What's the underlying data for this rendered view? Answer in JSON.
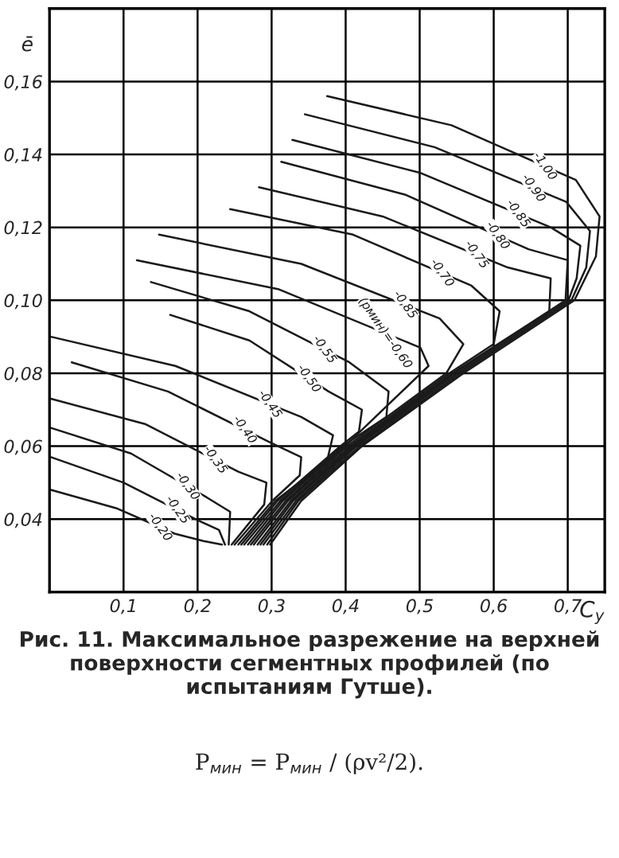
{
  "chart_data": {
    "type": "line",
    "xlabel": "C$_{y}$",
    "ylabel": "ē",
    "xlim": [
      0,
      0.75
    ],
    "ylim": [
      0.02,
      0.18
    ],
    "xticks": [
      {
        "value": 0.1,
        "label": "0,1"
      },
      {
        "value": 0.2,
        "label": "0,2"
      },
      {
        "value": 0.3,
        "label": "0,3"
      },
      {
        "value": 0.4,
        "label": "0,4"
      },
      {
        "value": 0.5,
        "label": "0,5"
      },
      {
        "value": 0.6,
        "label": "0,6"
      },
      {
        "value": 0.7,
        "label": "0,7"
      }
    ],
    "yticks": [
      {
        "value": 0.04,
        "label": "0,04"
      },
      {
        "value": 0.06,
        "label": "0,06"
      },
      {
        "value": 0.08,
        "label": "0,08"
      },
      {
        "value": 0.1,
        "label": "0,10"
      },
      {
        "value": 0.12,
        "label": "0,12"
      },
      {
        "value": 0.14,
        "label": "0,14"
      },
      {
        "value": 0.16,
        "label": "0,16"
      }
    ],
    "grid": true,
    "legend": false,
    "marker": "none",
    "line_style": "solid",
    "series": [
      {
        "name": "-1,00",
        "color": "#1a1a1a",
        "x": [
          0.375,
          0.543,
          0.711,
          0.743,
          0.738,
          0.709,
          0.559,
          0.422,
          0.34,
          0.298
        ],
        "values": [
          0.156,
          0.148,
          0.133,
          0.123,
          0.112,
          0.1,
          0.08,
          0.06,
          0.045,
          0.033
        ]
      },
      {
        "name": "-0,90",
        "color": "#1a1a1a",
        "x": [
          0.345,
          0.52,
          0.698,
          0.73,
          0.725,
          0.705,
          0.555,
          0.419,
          0.336,
          0.294
        ],
        "values": [
          0.151,
          0.142,
          0.127,
          0.119,
          0.109,
          0.1,
          0.08,
          0.06,
          0.045,
          0.033
        ]
      },
      {
        "name": "-0,85",
        "color": "#1a1a1a",
        "x": [
          0.328,
          0.5,
          0.677,
          0.717,
          0.712,
          0.701,
          0.551,
          0.415,
          0.333,
          0.289
        ],
        "values": [
          0.144,
          0.135,
          0.12,
          0.115,
          0.106,
          0.1,
          0.08,
          0.06,
          0.045,
          0.033
        ]
      },
      {
        "name": "-0,80",
        "color": "#1a1a1a",
        "x": [
          0.313,
          0.48,
          0.647,
          0.7,
          0.697,
          0.547,
          0.412,
          0.329,
          0.285
        ],
        "values": [
          0.138,
          0.129,
          0.114,
          0.111,
          0.1,
          0.08,
          0.06,
          0.045,
          0.033
        ]
      },
      {
        "name": "-0,75",
        "color": "#1a1a1a",
        "x": [
          0.283,
          0.45,
          0.619,
          0.677,
          0.675,
          0.544,
          0.409,
          0.326,
          0.281
        ],
        "values": [
          0.131,
          0.123,
          0.109,
          0.106,
          0.097,
          0.08,
          0.06,
          0.045,
          0.033
        ]
      },
      {
        "name": "-0,70",
        "color": "#1a1a1a",
        "x": [
          0.244,
          0.41,
          0.57,
          0.608,
          0.6,
          0.54,
          0.406,
          0.322,
          0.276
        ],
        "values": [
          0.125,
          0.118,
          0.104,
          0.097,
          0.088,
          0.08,
          0.06,
          0.045,
          0.033
        ]
      },
      {
        "name": "-0,85",
        "color": "#1a1a1a",
        "x": [
          0.148,
          0.34,
          0.527,
          0.559,
          0.536,
          0.402,
          0.319,
          0.272
        ],
        "values": [
          0.118,
          0.11,
          0.095,
          0.088,
          0.08,
          0.06,
          0.045,
          0.033
        ]
      },
      {
        "name": "(pмин)=-0,60",
        "color": "#1a1a1a",
        "x": [
          0.118,
          0.31,
          0.501,
          0.512,
          0.399,
          0.315,
          0.268
        ],
        "values": [
          0.111,
          0.103,
          0.087,
          0.082,
          0.06,
          0.045,
          0.033
        ]
      },
      {
        "name": "-0,55",
        "color": "#1a1a1a",
        "x": [
          0.137,
          0.27,
          0.405,
          0.458,
          0.455,
          0.396,
          0.312,
          0.263
        ],
        "values": [
          0.105,
          0.097,
          0.083,
          0.075,
          0.068,
          0.06,
          0.045,
          0.033
        ]
      },
      {
        "name": "-0,50",
        "color": "#1a1a1a",
        "x": [
          0.163,
          0.27,
          0.377,
          0.422,
          0.418,
          0.393,
          0.308,
          0.259
        ],
        "values": [
          0.096,
          0.089,
          0.075,
          0.07,
          0.064,
          0.06,
          0.045,
          0.033
        ]
      },
      {
        "name": "-0,45",
        "color": "#1a1a1a",
        "x": [
          0.002,
          0.17,
          0.34,
          0.383,
          0.375,
          0.305,
          0.255
        ],
        "values": [
          0.09,
          0.082,
          0.068,
          0.063,
          0.056,
          0.045,
          0.033
        ]
      },
      {
        "name": "-0,40",
        "color": "#1a1a1a",
        "x": [
          0.03,
          0.16,
          0.298,
          0.34,
          0.338,
          0.301,
          0.25
        ],
        "values": [
          0.083,
          0.075,
          0.061,
          0.057,
          0.052,
          0.045,
          0.033
        ]
      },
      {
        "name": "-0,35",
        "color": "#1a1a1a",
        "x": [
          0.002,
          0.13,
          0.255,
          0.293,
          0.29,
          0.246
        ],
        "values": [
          0.073,
          0.066,
          0.053,
          0.05,
          0.044,
          0.033
        ]
      },
      {
        "name": "-0,30",
        "color": "#1a1a1a",
        "x": [
          0.002,
          0.11,
          0.212,
          0.244,
          0.242
        ],
        "values": [
          0.065,
          0.058,
          0.046,
          0.042,
          0.033
        ]
      },
      {
        "name": "-0,25",
        "color": "#1a1a1a",
        "x": [
          0.002,
          0.1,
          0.197,
          0.229,
          0.237
        ],
        "values": [
          0.057,
          0.05,
          0.04,
          0.037,
          0.033
        ]
      },
      {
        "name": "-0,20",
        "color": "#1a1a1a",
        "x": [
          0.002,
          0.09,
          0.169,
          0.208,
          0.233
        ],
        "values": [
          0.048,
          0.043,
          0.036,
          0.034,
          0.033
        ]
      }
    ],
    "annotations": [
      "Рис. 11. Максимальное разрежение на верхней поверхности сегментных профилей (по испытаниям Гутше).",
      "P$_{мин}$ = P$_{мин}$ / (ρv²/2)."
    ]
  }
}
